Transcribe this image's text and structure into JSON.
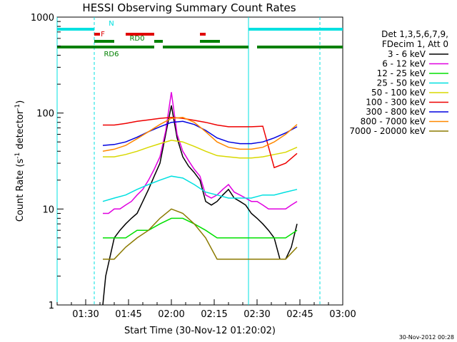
{
  "chart_data": {
    "type": "line",
    "title": "HESSI Observing Summary Count Rates",
    "xlabel": "Start Time (30-Nov-12 01:20:02)",
    "ylabel": "Count Rate (s",
    "ylabel_sup1": "-1",
    "ylabel_mid": " detector",
    "ylabel_sup2": "-1",
    "ylabel_end": ")",
    "yscale": "log",
    "ylim": [
      1,
      1000
    ],
    "xlim_minutes": [
      0,
      100
    ],
    "x_ticks": [
      "01:30",
      "01:45",
      "02:00",
      "02:15",
      "02:30",
      "02:45",
      "03:00"
    ],
    "y_ticks": [
      "1",
      "10",
      "100",
      "1000"
    ],
    "grid": false,
    "legend_position": "right",
    "legend_header": [
      "Det 1,3,5,6,7,9,",
      "FDecim 1, Att 0"
    ],
    "series": [
      {
        "name": "3 - 6 keV",
        "color": "#000000",
        "x": [
          16,
          17,
          20,
          22,
          24,
          26,
          28,
          30,
          32,
          34,
          36,
          38,
          40,
          42,
          44,
          46,
          48,
          50,
          52,
          54,
          56,
          58,
          60,
          62,
          64,
          66,
          68,
          70,
          72,
          74,
          76,
          78,
          80,
          82,
          84
        ],
        "values": [
          1,
          2,
          5,
          6,
          7,
          8,
          9,
          12,
          16,
          22,
          30,
          60,
          120,
          55,
          35,
          28,
          24,
          20,
          12,
          11,
          12,
          14,
          16,
          13,
          12,
          11,
          9,
          8,
          7,
          6,
          5,
          3,
          3,
          4,
          7
        ]
      },
      {
        "name": "6 - 12 keV",
        "color": "#e000e0",
        "x": [
          16,
          18,
          20,
          22,
          24,
          26,
          28,
          30,
          32,
          34,
          36,
          38,
          40,
          42,
          44,
          46,
          48,
          50,
          52,
          54,
          56,
          58,
          60,
          62,
          64,
          66,
          68,
          70,
          72,
          74,
          76,
          78,
          80,
          82,
          84
        ],
        "values": [
          9,
          9,
          10,
          10,
          11,
          12,
          14,
          16,
          20,
          26,
          35,
          65,
          165,
          60,
          40,
          32,
          26,
          22,
          14,
          13,
          14,
          16,
          18,
          15,
          14,
          13,
          12,
          12,
          11,
          10,
          10,
          10,
          10,
          11,
          12
        ]
      },
      {
        "name": "12 - 25 keV",
        "color": "#00e000",
        "x": [
          16,
          20,
          24,
          28,
          32,
          36,
          40,
          44,
          48,
          52,
          56,
          60,
          64,
          68,
          72,
          76,
          80,
          84
        ],
        "values": [
          5,
          5,
          5,
          6,
          6,
          7,
          8,
          8,
          7,
          6,
          5,
          5,
          5,
          5,
          5,
          5,
          5,
          6
        ]
      },
      {
        "name": "25 - 50 keV",
        "color": "#00e0e0",
        "x": [
          16,
          20,
          24,
          28,
          32,
          36,
          40,
          44,
          48,
          52,
          56,
          60,
          64,
          68,
          72,
          76,
          80,
          84
        ],
        "values": [
          12,
          13,
          14,
          16,
          18,
          20,
          22,
          21,
          18,
          15,
          14,
          13,
          13,
          13,
          14,
          14,
          15,
          16
        ]
      },
      {
        "name": "50 - 100 keV",
        "color": "#d8d800",
        "x": [
          16,
          20,
          24,
          28,
          32,
          36,
          40,
          44,
          48,
          52,
          56,
          60,
          64,
          68,
          72,
          76,
          80,
          84
        ],
        "values": [
          35,
          35,
          37,
          40,
          44,
          48,
          52,
          50,
          45,
          40,
          36,
          35,
          34,
          34,
          35,
          37,
          39,
          44
        ]
      },
      {
        "name": "100 - 300 keV",
        "color": "#ee0000",
        "x": [
          16,
          20,
          24,
          28,
          32,
          36,
          40,
          44,
          48,
          52,
          56,
          60,
          64,
          68,
          72,
          76,
          80,
          84
        ],
        "values": [
          75,
          75,
          78,
          82,
          85,
          88,
          90,
          88,
          84,
          80,
          75,
          72,
          72,
          72,
          73,
          27,
          30,
          38
        ]
      },
      {
        "name": "300 - 800 keV",
        "color": "#0000e0",
        "x": [
          16,
          20,
          24,
          28,
          32,
          36,
          40,
          44,
          48,
          52,
          56,
          60,
          64,
          68,
          72,
          76,
          80,
          84
        ],
        "values": [
          46,
          47,
          50,
          56,
          64,
          72,
          80,
          82,
          76,
          66,
          55,
          50,
          48,
          48,
          50,
          55,
          62,
          72
        ]
      },
      {
        "name": "800 - 7000 keV",
        "color": "#ff8800",
        "x": [
          16,
          20,
          24,
          28,
          32,
          36,
          40,
          44,
          48,
          52,
          56,
          60,
          64,
          68,
          72,
          76,
          80,
          84
        ],
        "values": [
          40,
          42,
          46,
          54,
          64,
          76,
          88,
          90,
          80,
          64,
          50,
          44,
          42,
          42,
          44,
          50,
          60,
          76
        ]
      },
      {
        "name": "7000 - 20000 keV",
        "color": "#8b7a00",
        "x": [
          16,
          20,
          24,
          28,
          32,
          36,
          40,
          44,
          48,
          52,
          56,
          60,
          64,
          68,
          72,
          76,
          80,
          84
        ],
        "values": [
          3,
          3,
          4,
          5,
          6,
          8,
          10,
          9,
          7,
          5,
          3,
          3,
          3,
          3,
          3,
          3,
          3,
          4
        ]
      }
    ],
    "flags": [
      {
        "label": "N",
        "color": "#00e0e0",
        "segments": [
          [
            0,
            13
          ],
          [
            67,
            100
          ]
        ]
      },
      {
        "label": "F",
        "color": "#e00000",
        "segments": [
          [
            13,
            15
          ],
          [
            24,
            34
          ],
          [
            50,
            52
          ]
        ]
      },
      {
        "label": "RD0",
        "color": "#008000",
        "segments": [
          [
            13,
            20
          ],
          [
            34,
            37
          ],
          [
            50,
            57
          ]
        ]
      },
      {
        "label": "RD6",
        "color": "#008000",
        "segments": [
          [
            0,
            20
          ],
          [
            20,
            34
          ],
          [
            37,
            67
          ],
          [
            70,
            100
          ]
        ]
      }
    ],
    "vertical_lines": [
      {
        "x": 0,
        "style": "solid",
        "color": "#00e0e0"
      },
      {
        "x": 13,
        "style": "dashed",
        "color": "#00e0e0"
      },
      {
        "x": 67,
        "style": "solid",
        "color": "#00e0e0"
      },
      {
        "x": 92,
        "style": "dashed",
        "color": "#00e0e0"
      }
    ]
  },
  "footer_stamp": "30-Nov-2012 00:28"
}
